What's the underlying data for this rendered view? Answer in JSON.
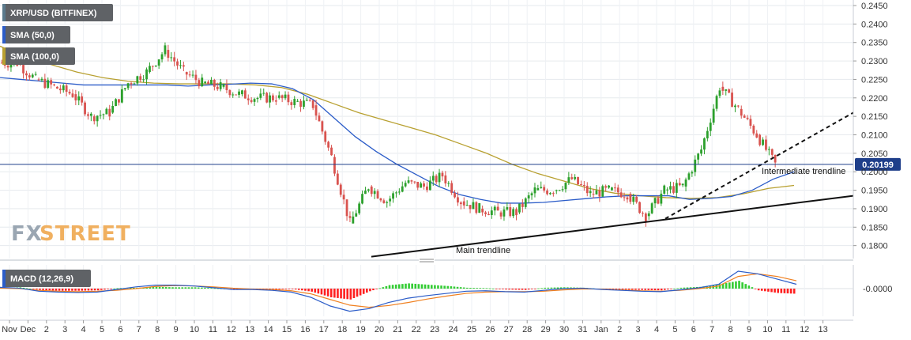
{
  "chart_data": [
    {
      "type": "candlestick",
      "title": "XRP/USD (BITFINEX)",
      "legend": [
        {
          "label": "XRP/USD (BITFINEX)",
          "color": "#5a7a8c"
        },
        {
          "label": "SMA (50,0)",
          "color": "#2b5cc8"
        },
        {
          "label": "SMA (100,0)",
          "color": "#b8a030"
        }
      ],
      "x_ticks": [
        "Nov",
        "Dec",
        "2",
        "3",
        "4",
        "5",
        "6",
        "7",
        "8",
        "9",
        "10",
        "11",
        "12",
        "13",
        "14",
        "15",
        "16",
        "17",
        "18",
        "19",
        "20",
        "21",
        "22",
        "23",
        "24",
        "25",
        "26",
        "27",
        "28",
        "29",
        "30",
        "31",
        "Jan",
        "2",
        "3",
        "4",
        "5",
        "6",
        "7",
        "8",
        "9",
        "10",
        "11",
        "12",
        "13"
      ],
      "y_ticks": [
        "0.2450",
        "0.2400",
        "0.2350",
        "0.2300",
        "0.2250",
        "0.2200",
        "0.2150",
        "0.2100",
        "0.2050",
        "0.2000",
        "0.1950",
        "0.1900",
        "0.1850",
        "0.1800"
      ],
      "ylim": [
        0.1765,
        0.2465
      ],
      "last_price": "0.20199",
      "last_price_value": 0.20199,
      "colors": {
        "up": "#2ca02c",
        "down": "#d9534f",
        "sma50": "#2b5cc8",
        "sma100": "#b8a030",
        "price_line": "#1f3f8a",
        "badge": "#1f3f8a"
      },
      "daily_close": [
        0.2295,
        0.225,
        0.223,
        0.221,
        0.215,
        0.216,
        0.224,
        0.227,
        0.233,
        0.227,
        0.224,
        0.223,
        0.221,
        0.22,
        0.22,
        0.219,
        0.218,
        0.204,
        0.186,
        0.196,
        0.192,
        0.197,
        0.196,
        0.199,
        0.192,
        0.19,
        0.189,
        0.189,
        0.195,
        0.195,
        0.198,
        0.194,
        0.195,
        0.194,
        0.188,
        0.195,
        0.196,
        0.206,
        0.223,
        0.217,
        0.21,
        0.20199
      ],
      "sma50": [
        0.2255,
        0.225,
        0.2245,
        0.224,
        0.2235,
        0.2235,
        0.2235,
        0.2235,
        0.2235,
        0.2232,
        0.2235,
        0.2237,
        0.224,
        0.2238,
        0.2225,
        0.2195,
        0.2145,
        0.2095,
        0.2055,
        0.202,
        0.199,
        0.196,
        0.1938,
        0.1925,
        0.1915,
        0.1915,
        0.1917,
        0.1922,
        0.1927,
        0.1932,
        0.1935,
        0.1935,
        0.1935,
        0.1925,
        0.1928,
        0.1933,
        0.195,
        0.198,
        0.2
      ],
      "sma100": [
        0.234,
        0.231,
        0.229,
        0.227,
        0.2255,
        0.2245,
        0.224,
        0.2238,
        0.2238,
        0.2238,
        0.2235,
        0.2228,
        0.221,
        0.2185,
        0.216,
        0.214,
        0.212,
        0.21,
        0.2075,
        0.205,
        0.202,
        0.1995,
        0.1975,
        0.1955,
        0.1942,
        0.1935,
        0.193,
        0.1928,
        0.193,
        0.194,
        0.1955,
        0.1963
      ],
      "trendlines": [
        {
          "label": "Main trendline",
          "from": [
            18.5,
            0.177
          ],
          "to": [
            13.0,
            0.1935
          ],
          "style": "solid"
        },
        {
          "label": "Intermediate trendline",
          "from": [
            3.0,
            0.1873
          ],
          "to": [
            13.0,
            0.216
          ],
          "style": "dashed"
        }
      ],
      "watermark": {
        "text_a": "FX",
        "text_b": "STREET"
      }
    },
    {
      "type": "macd",
      "title": "MACD (12,26,9)",
      "y_ticks": [
        "-0.0000"
      ],
      "colors": {
        "macd": "#2b5cc8",
        "signal": "#f08020",
        "hist_pos": "#33cc33",
        "hist_neg": "#ff2020"
      },
      "histogram": [
        0.0002,
        0.0003,
        -0.0003,
        -0.0005,
        -0.0005,
        -0.0004,
        0.0001,
        0.0002,
        0.0004,
        0.0003,
        0.0003,
        0.0001,
        -0.0001,
        -0.0002,
        -0.0002,
        -0.0001,
        -0.0007,
        -0.002,
        -0.0025,
        -0.0006,
        0.0008,
        0.0012,
        0.0009,
        0.0006,
        0.0002,
        0.0001,
        -0.0002,
        -0.0003,
        0.0002,
        0.0003,
        0.0002,
        -0.0001,
        -0.0002,
        -0.0003,
        -0.0004,
        0.0002,
        0.0004,
        0.001,
        0.0018,
        -0.0004,
        -0.001,
        -0.0012
      ],
      "macd": [
        0.0003,
        0.0001,
        -0.0006,
        -0.0008,
        -0.0009,
        -0.0008,
        -0.0002,
        0.0004,
        0.0008,
        0.0008,
        0.0006,
        0.0002,
        -0.0002,
        -0.0002,
        -0.0004,
        -0.0008,
        -0.002,
        -0.004,
        -0.0052,
        -0.0046,
        -0.0032,
        -0.0022,
        -0.0016,
        -0.0011,
        -0.0006,
        -0.0005,
        -0.0007,
        -0.0008,
        -0.0004,
        0.0,
        0.0001,
        -0.0002,
        -0.0004,
        -0.0006,
        -0.0007,
        -0.0003,
        0.0002,
        0.001,
        0.004,
        0.0034,
        0.0022,
        0.001
      ],
      "signal": [
        0.0001,
        0.0,
        -0.0004,
        -0.0006,
        -0.0007,
        -0.0006,
        -0.0004,
        0.0,
        0.0005,
        0.0007,
        0.0006,
        0.0004,
        0.0001,
        -0.0001,
        -0.0002,
        -0.0005,
        -0.0012,
        -0.0025,
        -0.0038,
        -0.0043,
        -0.0039,
        -0.0032,
        -0.0024,
        -0.0017,
        -0.0011,
        -0.0008,
        -0.0007,
        -0.0007,
        -0.0006,
        -0.0003,
        -0.0001,
        -0.0001,
        -0.0003,
        -0.0005,
        -0.0006,
        -0.0004,
        0.0,
        0.0006,
        0.0028,
        0.0034,
        0.0028,
        0.0018
      ]
    }
  ]
}
